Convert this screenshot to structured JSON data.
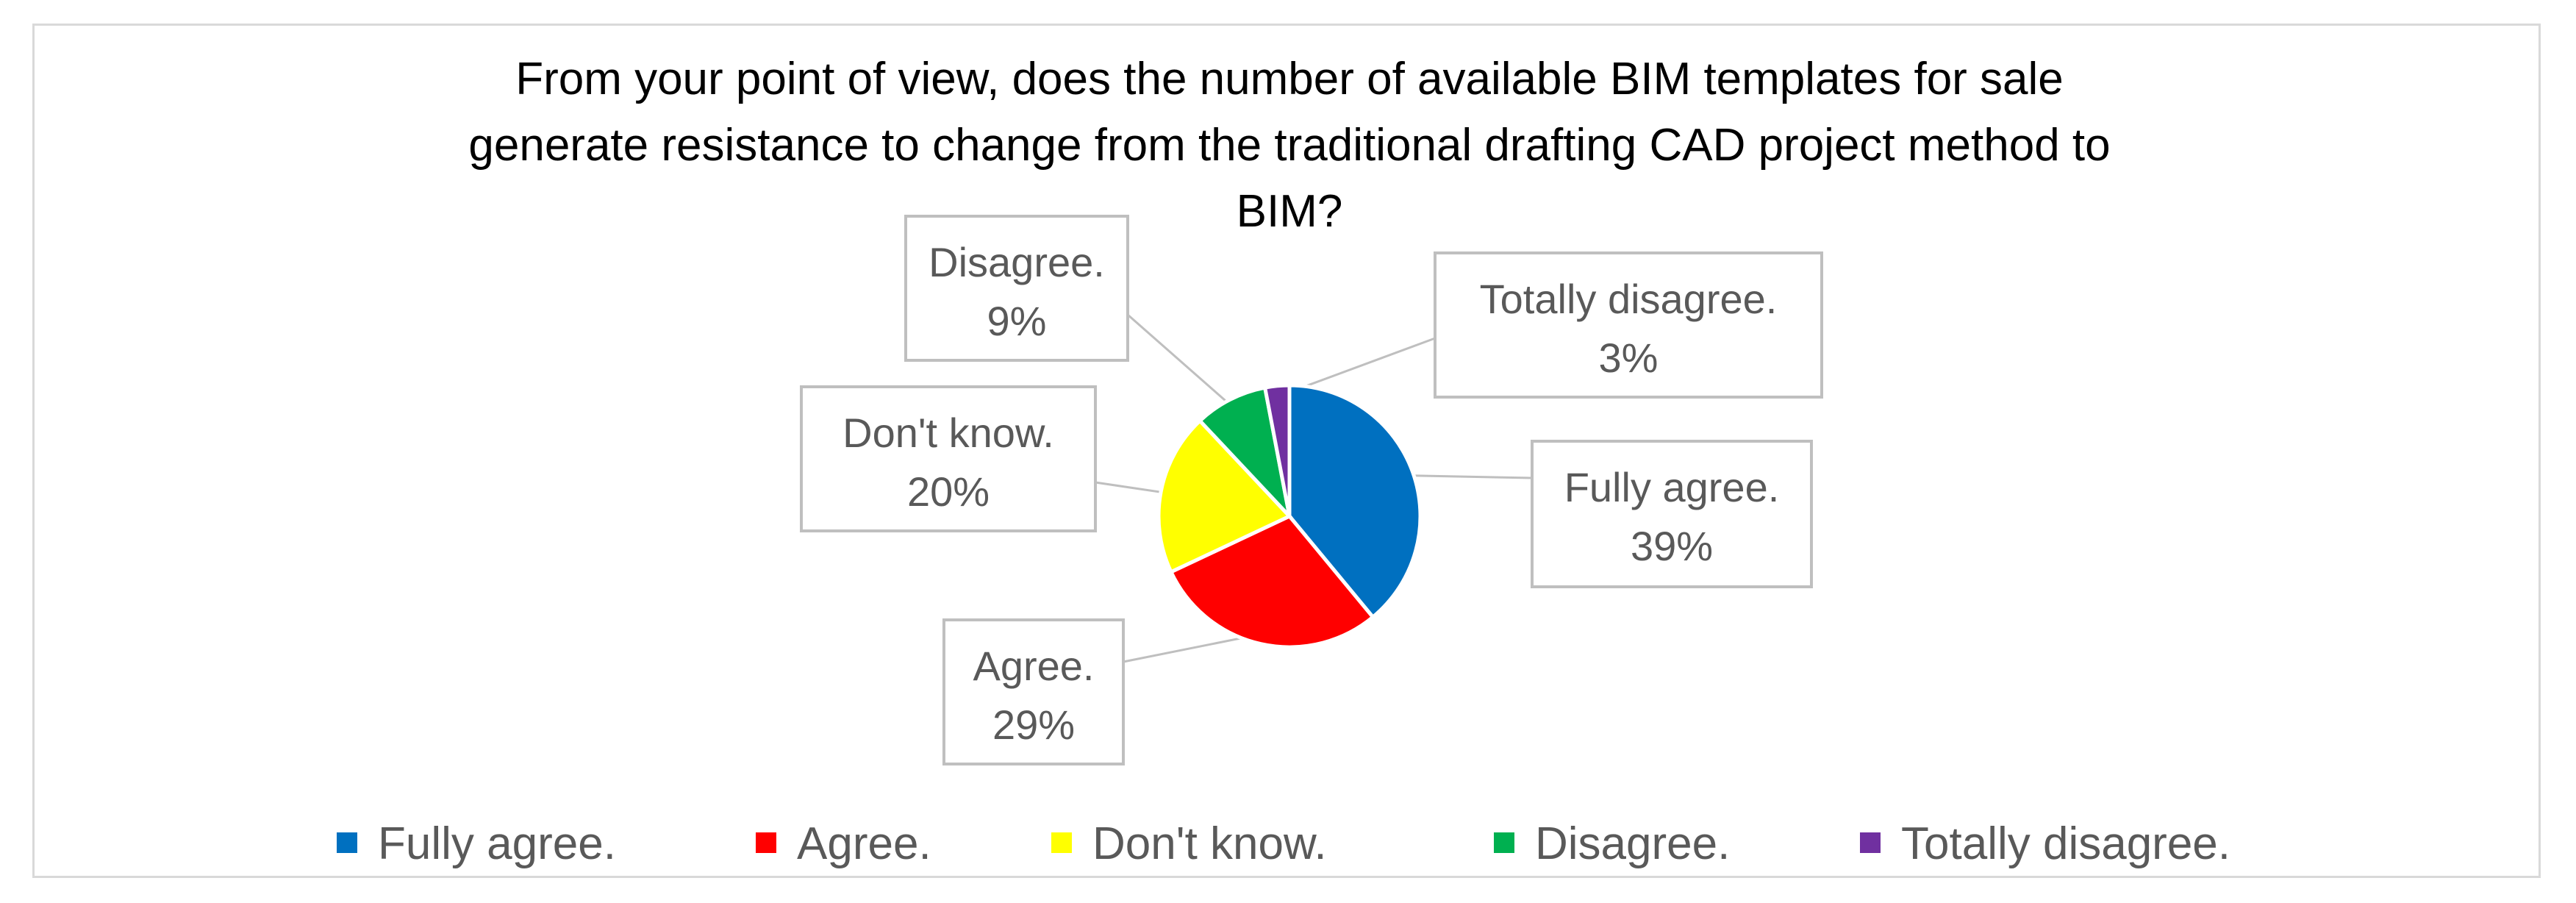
{
  "chart_data": {
    "type": "pie",
    "title_lines": [
      "From your point of view, does the number of available BIM templates for sale",
      "generate resistance to change from the traditional drafting CAD project method to",
      "BIM?"
    ],
    "categories": [
      "Fully agree.",
      "Agree.",
      "Don't know.",
      "Disagree.",
      "Totally disagree."
    ],
    "values": [
      39,
      29,
      20,
      9,
      3
    ],
    "value_labels": [
      "39%",
      "29%",
      "20%",
      "9%",
      "3%"
    ],
    "colors": [
      "#0070C0",
      "#FF0000",
      "#FFFF00",
      "#00B050",
      "#7030A0"
    ],
    "legend_position": "bottom",
    "slice_border_color": "#ffffff",
    "label_box_border_color": "#bfbfbf",
    "leader_line_color": "#bfbfbf"
  }
}
